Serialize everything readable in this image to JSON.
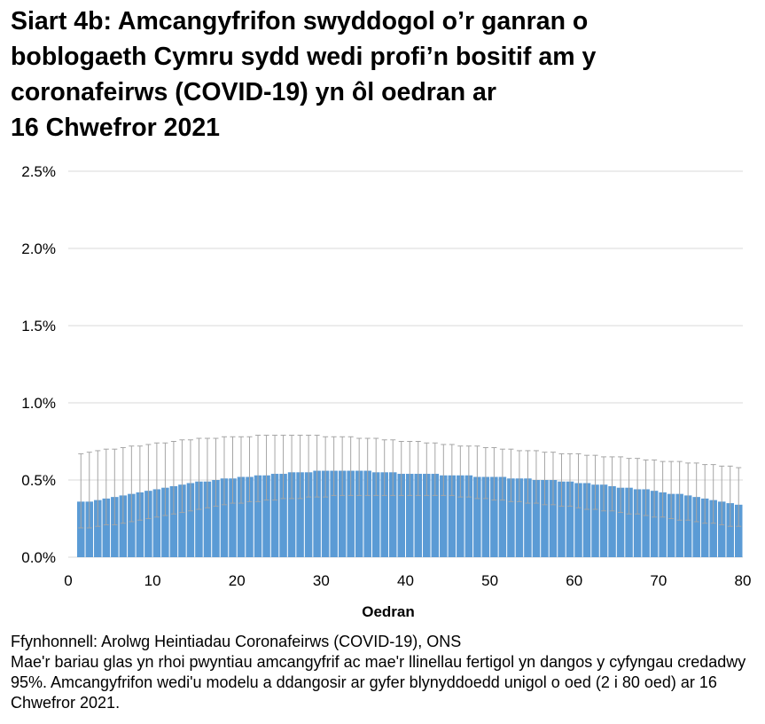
{
  "title_lines": [
    "Siart 4b: Amcangyfrifon swyddogol o’r ganran o",
    "boblogaeth Cymru sydd wedi profi’n bositif am y",
    "coronafeirws (COVID-19) yn ôl oedran ar",
    "16 Chwefror 2021"
  ],
  "chart_data": {
    "type": "bar",
    "title": "Siart 4b: Amcangyfrifon swyddogol o’r ganran o boblogaeth Cymru sydd wedi profi’n bositif am y coronafeirws (COVID-19) yn ôl oedran ar 16 Chwefror 2021",
    "xlabel": "Oedran",
    "ylabel": "",
    "xlim": [
      0,
      80
    ],
    "ylim": [
      0,
      2.5
    ],
    "x_ticks": [
      "0",
      "10",
      "20",
      "30",
      "40",
      "50",
      "60",
      "70",
      "80"
    ],
    "y_ticks": [
      "0.0%",
      "0.5%",
      "1.0%",
      "1.5%",
      "2.0%",
      "2.5%"
    ],
    "grid": true,
    "bar_color": "#5b9bd5",
    "error_color": "#a5a5a5",
    "x": [
      2,
      3,
      4,
      5,
      6,
      7,
      8,
      9,
      10,
      11,
      12,
      13,
      14,
      15,
      16,
      17,
      18,
      19,
      20,
      21,
      22,
      23,
      24,
      25,
      26,
      27,
      28,
      29,
      30,
      31,
      32,
      33,
      34,
      35,
      36,
      37,
      38,
      39,
      40,
      41,
      42,
      43,
      44,
      45,
      46,
      47,
      48,
      49,
      50,
      51,
      52,
      53,
      54,
      55,
      56,
      57,
      58,
      59,
      60,
      61,
      62,
      63,
      64,
      65,
      66,
      67,
      68,
      69,
      70,
      71,
      72,
      73,
      74,
      75,
      76,
      77,
      78,
      79,
      80
    ],
    "values": [
      0.36,
      0.36,
      0.37,
      0.38,
      0.39,
      0.4,
      0.41,
      0.42,
      0.43,
      0.44,
      0.45,
      0.46,
      0.47,
      0.48,
      0.49,
      0.49,
      0.5,
      0.51,
      0.51,
      0.52,
      0.52,
      0.53,
      0.53,
      0.54,
      0.54,
      0.55,
      0.55,
      0.55,
      0.56,
      0.56,
      0.56,
      0.56,
      0.56,
      0.56,
      0.56,
      0.55,
      0.55,
      0.55,
      0.54,
      0.54,
      0.54,
      0.54,
      0.54,
      0.53,
      0.53,
      0.53,
      0.53,
      0.52,
      0.52,
      0.52,
      0.52,
      0.51,
      0.51,
      0.51,
      0.5,
      0.5,
      0.5,
      0.49,
      0.49,
      0.48,
      0.48,
      0.47,
      0.47,
      0.46,
      0.45,
      0.45,
      0.44,
      0.44,
      0.43,
      0.42,
      0.41,
      0.41,
      0.4,
      0.39,
      0.38,
      0.37,
      0.36,
      0.35,
      0.34
    ],
    "lower": [
      0.19,
      0.19,
      0.2,
      0.21,
      0.21,
      0.22,
      0.23,
      0.24,
      0.25,
      0.26,
      0.27,
      0.28,
      0.29,
      0.3,
      0.31,
      0.32,
      0.33,
      0.34,
      0.35,
      0.35,
      0.36,
      0.36,
      0.37,
      0.37,
      0.38,
      0.38,
      0.38,
      0.39,
      0.39,
      0.39,
      0.4,
      0.4,
      0.4,
      0.4,
      0.4,
      0.4,
      0.4,
      0.4,
      0.4,
      0.4,
      0.4,
      0.4,
      0.4,
      0.4,
      0.4,
      0.39,
      0.39,
      0.38,
      0.38,
      0.37,
      0.37,
      0.36,
      0.36,
      0.35,
      0.35,
      0.34,
      0.34,
      0.33,
      0.33,
      0.32,
      0.31,
      0.31,
      0.3,
      0.3,
      0.29,
      0.28,
      0.28,
      0.27,
      0.26,
      0.26,
      0.25,
      0.24,
      0.24,
      0.23,
      0.22,
      0.22,
      0.21,
      0.2,
      0.2
    ],
    "upper": [
      0.67,
      0.68,
      0.69,
      0.7,
      0.7,
      0.71,
      0.72,
      0.72,
      0.73,
      0.74,
      0.74,
      0.75,
      0.76,
      0.76,
      0.77,
      0.77,
      0.77,
      0.78,
      0.78,
      0.78,
      0.78,
      0.79,
      0.79,
      0.79,
      0.79,
      0.79,
      0.79,
      0.79,
      0.79,
      0.78,
      0.78,
      0.78,
      0.78,
      0.77,
      0.77,
      0.77,
      0.76,
      0.76,
      0.75,
      0.75,
      0.75,
      0.74,
      0.74,
      0.73,
      0.73,
      0.72,
      0.72,
      0.72,
      0.71,
      0.71,
      0.7,
      0.7,
      0.69,
      0.69,
      0.69,
      0.68,
      0.68,
      0.67,
      0.67,
      0.67,
      0.66,
      0.66,
      0.65,
      0.65,
      0.65,
      0.64,
      0.64,
      0.63,
      0.63,
      0.62,
      0.62,
      0.62,
      0.61,
      0.61,
      0.6,
      0.6,
      0.59,
      0.59,
      0.58
    ]
  },
  "notes": [
    "Ffynhonnell: Arolwg Heintiadau Coronafeirws (COVID-19), ONS",
    "Mae'r bariau glas yn rhoi pwyntiau amcangyfrif ac mae'r llinellau fertigol yn dangos y cyfyngau credadwy 95%. Amcangyfrifon wedi'u modelu a ddangosir ar gyfer blynyddoedd unigol o oed (2 i 80 oed) ar 16 Chwefror 2021."
  ]
}
